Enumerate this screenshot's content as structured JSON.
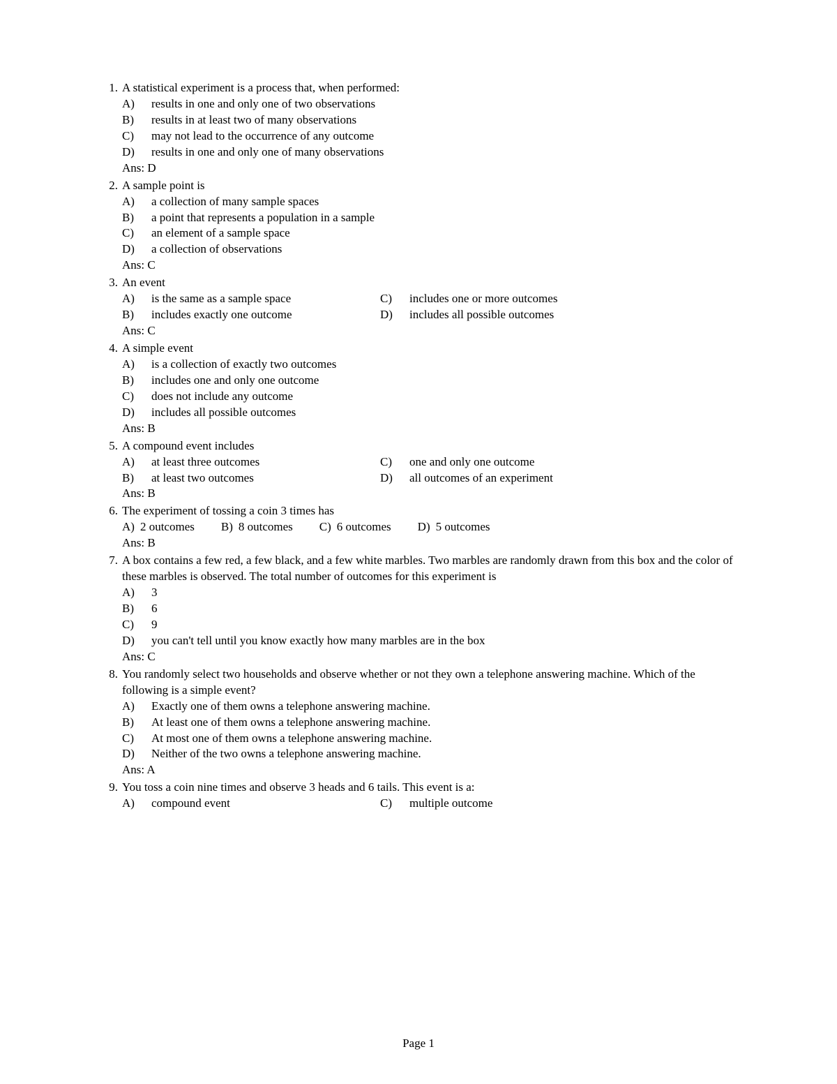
{
  "page_label": "Page 1",
  "questions": [
    {
      "num": "1.",
      "text": "A statistical experiment is a process that, when performed:",
      "layout": "single",
      "options": [
        {
          "letter": "A)",
          "text": "results in one and only one of two observations"
        },
        {
          "letter": "B)",
          "text": "results in at least two of many observations"
        },
        {
          "letter": "C)",
          "text": "may not lead to the occurrence of any outcome"
        },
        {
          "letter": "D)",
          "text": "results in one and only one of many observations"
        }
      ],
      "ans": "Ans:  D"
    },
    {
      "num": "2.",
      "text": "A sample point is",
      "layout": "single",
      "options": [
        {
          "letter": "A)",
          "text": "a collection of many sample spaces"
        },
        {
          "letter": "B)",
          "text": "a point that represents a population in a sample"
        },
        {
          "letter": "C)",
          "text": "an element of a sample space"
        },
        {
          "letter": "D)",
          "text": "a collection of observations"
        }
      ],
      "ans": "Ans:  C"
    },
    {
      "num": "3.",
      "text": "An event",
      "layout": "twocol",
      "options": [
        {
          "letter": "A)",
          "text": "is the same as a sample space"
        },
        {
          "letter": "B)",
          "text": "includes exactly one outcome"
        },
        {
          "letter": "C)",
          "text": "includes one or more outcomes"
        },
        {
          "letter": "D)",
          "text": "includes all possible outcomes"
        }
      ],
      "ans": "Ans:  C"
    },
    {
      "num": "4.",
      "text": "A simple event",
      "layout": "single",
      "options": [
        {
          "letter": "A)",
          "text": "is a collection of exactly two outcomes"
        },
        {
          "letter": "B)",
          "text": "includes one and only one outcome"
        },
        {
          "letter": "C)",
          "text": "does not include any outcome"
        },
        {
          "letter": "D)",
          "text": "includes all possible outcomes"
        }
      ],
      "ans": "Ans:  B"
    },
    {
      "num": "5.",
      "text": "A compound event includes",
      "layout": "twocol",
      "options": [
        {
          "letter": "A)",
          "text": "at least three outcomes"
        },
        {
          "letter": "B)",
          "text": "at least two outcomes"
        },
        {
          "letter": "C)",
          "text": "one and only one outcome"
        },
        {
          "letter": "D)",
          "text": "all outcomes of an experiment"
        }
      ],
      "ans": "Ans:  B"
    },
    {
      "num": "6.",
      "text": "The experiment of tossing a coin 3 times has",
      "layout": "inline",
      "options": [
        {
          "letter": "A)",
          "text": "2 outcomes"
        },
        {
          "letter": "B)",
          "text": "8 outcomes"
        },
        {
          "letter": "C)",
          "text": "6 outcomes"
        },
        {
          "letter": "D)",
          "text": "5 outcomes"
        }
      ],
      "ans": "Ans:  B"
    },
    {
      "num": "7.",
      "text": "A box contains a few red, a few black, and a few white marbles. Two marbles are randomly drawn from this box and the color of these marbles is observed. The total number of outcomes for this experiment is",
      "layout": "single",
      "options": [
        {
          "letter": "A)",
          "text": "3"
        },
        {
          "letter": "B)",
          "text": "6"
        },
        {
          "letter": "C)",
          "text": "9"
        },
        {
          "letter": "D)",
          "text": "you can't tell until you know exactly how many marbles are in the box"
        }
      ],
      "ans": "Ans:  C"
    },
    {
      "num": "8.",
      "text": "You randomly select two households and observe whether or not they own a telephone answering machine. Which of the following is a simple event?",
      "layout": "single",
      "options": [
        {
          "letter": "A)",
          "text": "Exactly one of them owns a telephone answering machine."
        },
        {
          "letter": "B)",
          "text": "At least one of them owns a telephone answering machine."
        },
        {
          "letter": "C)",
          "text": "At most one of them owns a telephone answering machine."
        },
        {
          "letter": "D)",
          "text": "Neither of the two owns a telephone answering machine."
        }
      ],
      "ans": "Ans:  A"
    },
    {
      "num": "9.",
      "text": "You toss a coin nine times and observe 3 heads and 6 tails. This event is a:",
      "layout": "twocol_partial",
      "options": [
        {
          "letter": "A)",
          "text": "compound event"
        },
        {
          "letter": "C)",
          "text": "multiple outcome"
        }
      ],
      "ans": ""
    }
  ]
}
